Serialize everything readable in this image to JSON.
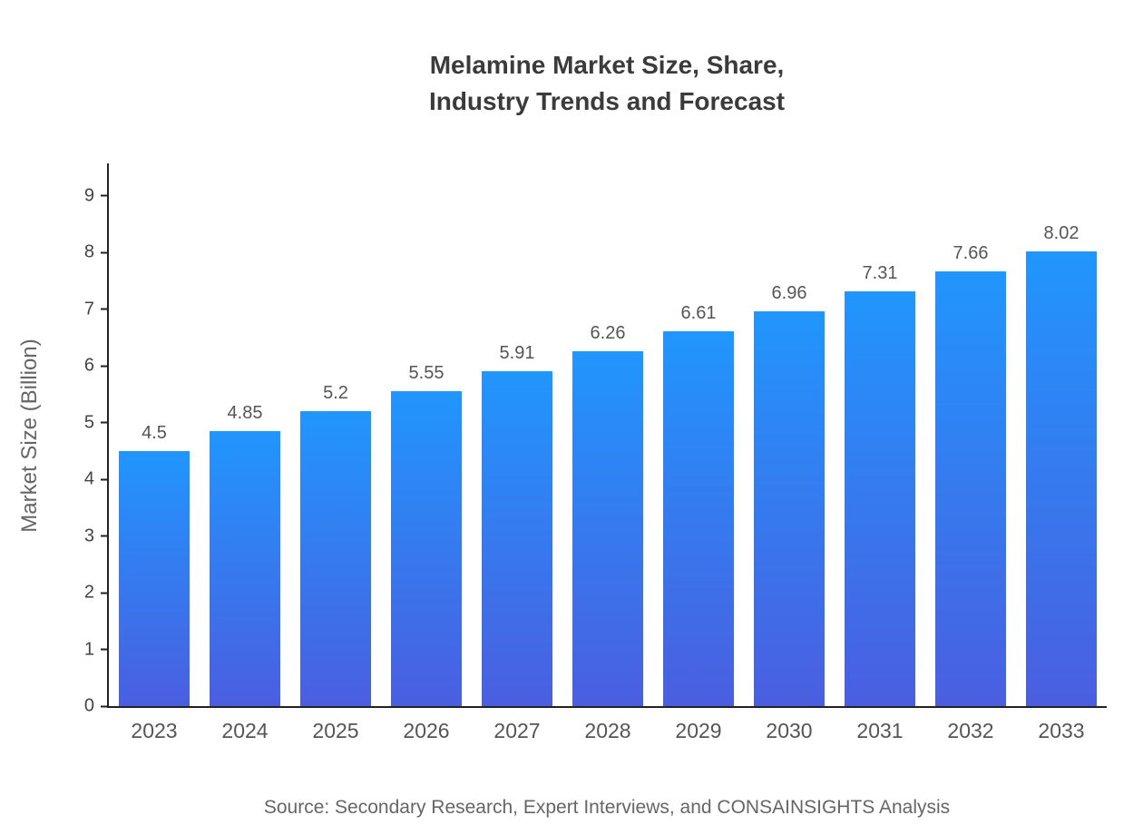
{
  "title": {
    "line1": "Melamine Market Size, Share,",
    "line2": "Industry Trends and Forecast"
  },
  "source": "Source: Secondary Research, Expert Interviews, and CONSAINSIGHTS Analysis",
  "colors": {
    "bar_top": "#2196fd",
    "bar_bottom": "#4a5ee0",
    "axis": "#222222",
    "label_text": "#555555"
  },
  "chart_data": {
    "type": "bar",
    "title": "Melamine Market Size, Share, Industry Trends and Forecast",
    "categories": [
      "2023",
      "2024",
      "2025",
      "2026",
      "2027",
      "2028",
      "2029",
      "2030",
      "2031",
      "2032",
      "2033"
    ],
    "values": [
      4.5,
      4.85,
      5.2,
      5.55,
      5.91,
      6.26,
      6.61,
      6.96,
      7.31,
      7.66,
      8.02
    ],
    "value_labels": [
      "4.5",
      "4.85",
      "5.2",
      "5.55",
      "5.91",
      "6.26",
      "6.61",
      "6.96",
      "7.31",
      "7.66",
      "8.02"
    ],
    "xlabel": "",
    "ylabel": "Market Size (Billion)",
    "ylim": [
      0,
      9.6
    ],
    "yticks": [
      0,
      1,
      2,
      3,
      4,
      5,
      6,
      7,
      8,
      9
    ],
    "grid": false,
    "legend": false
  }
}
